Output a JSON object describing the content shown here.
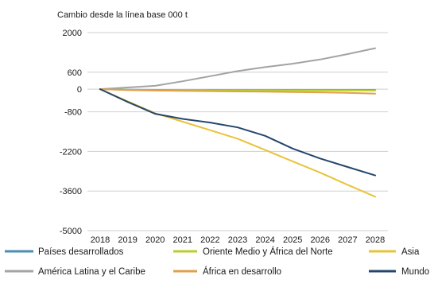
{
  "chart_data": {
    "type": "line",
    "title": "Cambio desde la línea base 000 t",
    "xlabel": "",
    "ylabel": "",
    "x": [
      "2018",
      "2019",
      "2020",
      "2021",
      "2022",
      "2023",
      "2024",
      "2025",
      "2026",
      "2027",
      "2028"
    ],
    "yticks": [
      2000,
      600,
      0,
      -800,
      -2200,
      -3600,
      -5000
    ],
    "ylim": [
      -5000,
      2000
    ],
    "grid": "horizontal",
    "legend_position": "bottom",
    "series": [
      {
        "name": "Países desarrollados",
        "color": "#4a8fb0",
        "values": [
          0,
          -15,
          -25,
          -30,
          -30,
          -30,
          -30,
          -30,
          -30,
          -30,
          -30
        ]
      },
      {
        "name": "Oriente Medio y África del Norte",
        "color": "#b8cf2e",
        "values": [
          0,
          -20,
          -30,
          -35,
          -40,
          -40,
          -40,
          -45,
          -45,
          -45,
          -50
        ]
      },
      {
        "name": "Asia",
        "color": "#e8c33a",
        "values": [
          0,
          -430,
          -850,
          -1150,
          -1450,
          -1750,
          -2150,
          -2550,
          -2950,
          -3380,
          -3800
        ]
      },
      {
        "name": "América Latina y el Caribe",
        "color": "#a3a3a3",
        "values": [
          0,
          60,
          120,
          280,
          460,
          640,
          780,
          900,
          1050,
          1240,
          1450
        ]
      },
      {
        "name": "África en desarrollo",
        "color": "#e0a04a",
        "values": [
          0,
          -30,
          -50,
          -60,
          -70,
          -80,
          -90,
          -100,
          -110,
          -130,
          -160
        ]
      },
      {
        "name": "Mundo",
        "color": "#24466e",
        "values": [
          0,
          -450,
          -870,
          -1050,
          -1180,
          -1350,
          -1650,
          -2100,
          -2450,
          -2750,
          -3050
        ]
      }
    ]
  }
}
